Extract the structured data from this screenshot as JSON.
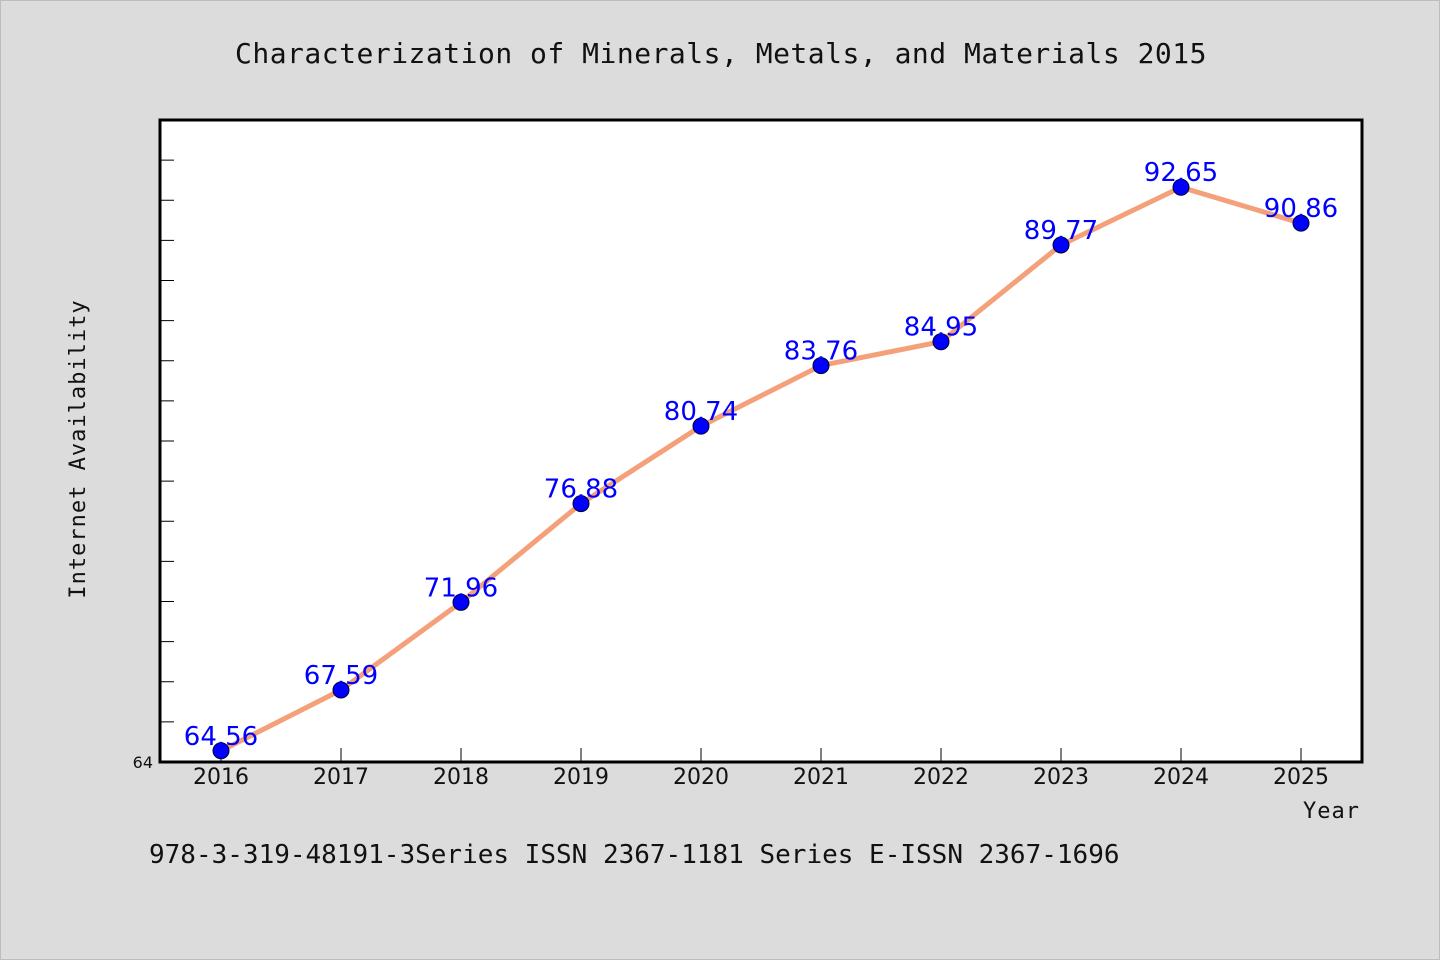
{
  "chart_data": {
    "type": "line",
    "title": "Characterization of Minerals, Metals, and Materials 2015",
    "xlabel": "Year",
    "ylabel": "Internet Availability",
    "categories": [
      "2016",
      "2017",
      "2018",
      "2019",
      "2020",
      "2021",
      "2022",
      "2023",
      "2024",
      "2025"
    ],
    "series": [
      {
        "values": [
          64.56,
          67.59,
          71.96,
          76.88,
          80.74,
          83.76,
          84.95,
          89.77,
          92.65,
          90.86
        ],
        "labels": [
          "64.56",
          "67.59",
          "71.96",
          "76.88",
          "80.74",
          "83.76",
          "84.95",
          "89.77",
          "92.65",
          "90.86"
        ]
      }
    ],
    "ylim": [
      64,
      96
    ],
    "yticks": [
      {
        "value": 64,
        "label": "64"
      }
    ],
    "grid": false,
    "legend": "none",
    "line_color": "#f4a07a",
    "marker_color": "#0000ff",
    "label_color": "#0000ff"
  },
  "footer": "978-3-319-48191-3Series ISSN 2367-1181 Series E-ISSN 2367-1696"
}
